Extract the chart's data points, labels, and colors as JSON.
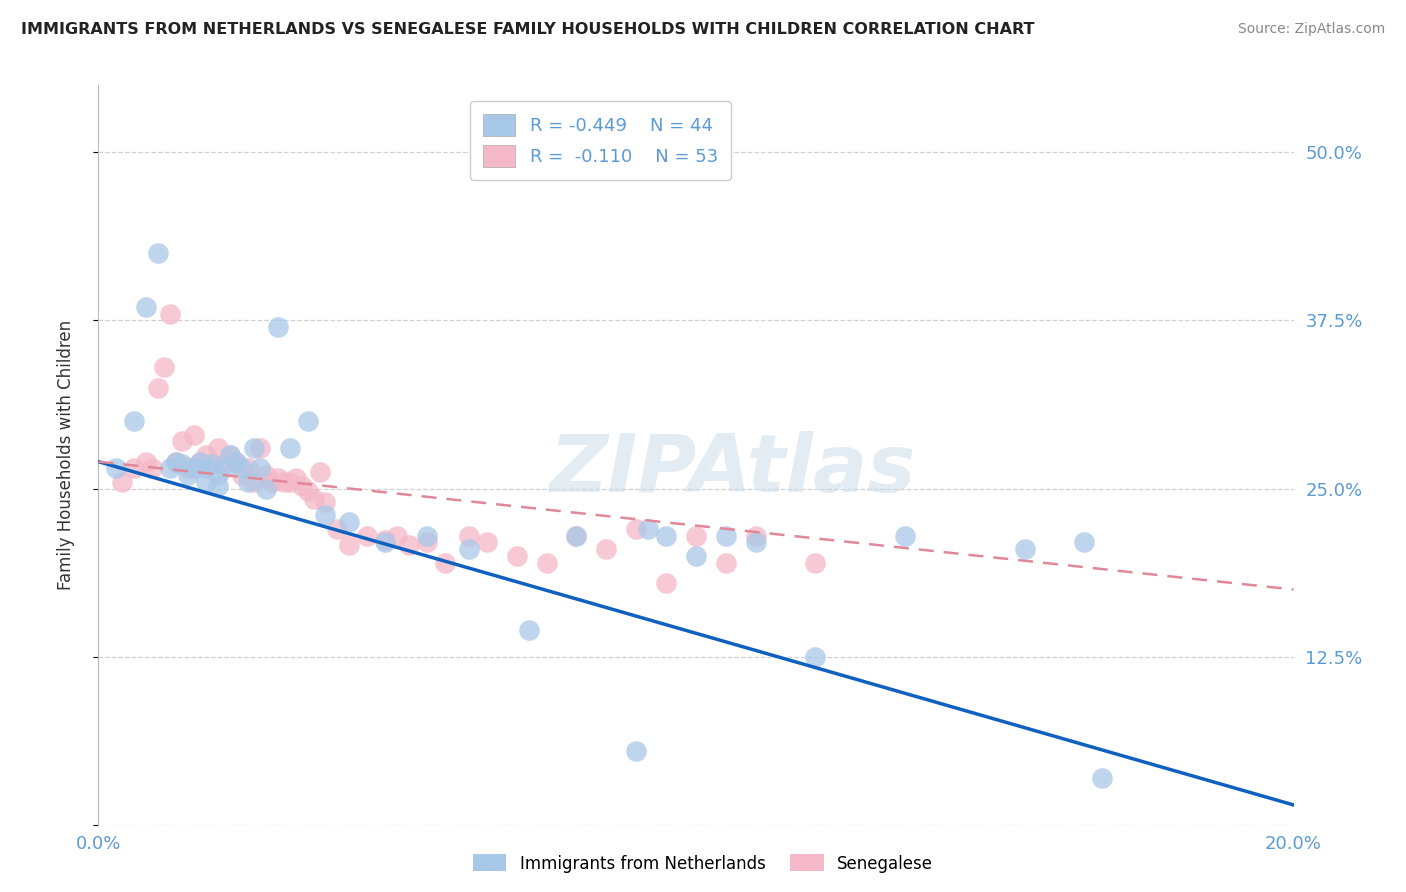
{
  "title": "IMMIGRANTS FROM NETHERLANDS VS SENEGALESE FAMILY HOUSEHOLDS WITH CHILDREN CORRELATION CHART",
  "source": "Source: ZipAtlas.com",
  "ylabel": "Family Households with Children",
  "xlim": [
    0.0,
    0.2
  ],
  "ylim": [
    0.0,
    0.55
  ],
  "yticks": [
    0.0,
    0.125,
    0.25,
    0.375,
    0.5
  ],
  "ytick_labels": [
    "",
    "12.5%",
    "25.0%",
    "37.5%",
    "50.0%"
  ],
  "xticks": [
    0.0,
    0.05,
    0.1,
    0.15,
    0.2
  ],
  "xtick_labels": [
    "0.0%",
    "",
    "",
    "",
    "20.0%"
  ],
  "legend_R1": "R = -0.449",
  "legend_N1": "N = 44",
  "legend_R2": "R = -0.110",
  "legend_N2": "N = 53",
  "watermark": "ZIPAtlas",
  "blue_color": "#A8C8E8",
  "pink_color": "#F4B8C8",
  "line_blue": "#1060C0",
  "line_pink": "#E08898",
  "axis_color": "#5B9BD5",
  "grid_color": "#CCCCCC",
  "blue_line_x0": 0.0,
  "blue_line_y0": 0.27,
  "blue_line_x1": 0.2,
  "blue_line_y1": 0.015,
  "pink_line_x0": 0.0,
  "pink_line_y0": 0.27,
  "pink_line_x1": 0.2,
  "pink_line_y1": 0.175,
  "blue_scatter_x": [
    0.003,
    0.006,
    0.008,
    0.01,
    0.012,
    0.013,
    0.014,
    0.015,
    0.016,
    0.017,
    0.018,
    0.018,
    0.019,
    0.02,
    0.02,
    0.021,
    0.022,
    0.023,
    0.024,
    0.025,
    0.026,
    0.027,
    0.028,
    0.03,
    0.032,
    0.035,
    0.038,
    0.042,
    0.048,
    0.055,
    0.062,
    0.072,
    0.08,
    0.092,
    0.095,
    0.1,
    0.105,
    0.11,
    0.12,
    0.135,
    0.168,
    0.09,
    0.155,
    0.165
  ],
  "blue_scatter_y": [
    0.265,
    0.3,
    0.385,
    0.425,
    0.265,
    0.27,
    0.268,
    0.26,
    0.265,
    0.27,
    0.265,
    0.255,
    0.268,
    0.26,
    0.252,
    0.265,
    0.275,
    0.27,
    0.265,
    0.255,
    0.28,
    0.265,
    0.25,
    0.37,
    0.28,
    0.3,
    0.23,
    0.225,
    0.21,
    0.215,
    0.205,
    0.145,
    0.215,
    0.22,
    0.215,
    0.2,
    0.215,
    0.21,
    0.125,
    0.215,
    0.035,
    0.055,
    0.205,
    0.21
  ],
  "pink_scatter_x": [
    0.004,
    0.006,
    0.008,
    0.009,
    0.01,
    0.011,
    0.012,
    0.013,
    0.014,
    0.015,
    0.016,
    0.017,
    0.018,
    0.019,
    0.02,
    0.021,
    0.022,
    0.023,
    0.024,
    0.025,
    0.026,
    0.027,
    0.028,
    0.029,
    0.03,
    0.031,
    0.032,
    0.033,
    0.034,
    0.035,
    0.036,
    0.037,
    0.038,
    0.04,
    0.042,
    0.045,
    0.048,
    0.05,
    0.052,
    0.055,
    0.058,
    0.062,
    0.065,
    0.07,
    0.075,
    0.08,
    0.085,
    0.09,
    0.095,
    0.1,
    0.105,
    0.11,
    0.12
  ],
  "pink_scatter_y": [
    0.255,
    0.265,
    0.27,
    0.265,
    0.325,
    0.34,
    0.38,
    0.27,
    0.285,
    0.265,
    0.29,
    0.27,
    0.275,
    0.268,
    0.28,
    0.268,
    0.275,
    0.27,
    0.26,
    0.265,
    0.255,
    0.28,
    0.26,
    0.255,
    0.258,
    0.255,
    0.255,
    0.258,
    0.252,
    0.248,
    0.242,
    0.262,
    0.24,
    0.22,
    0.208,
    0.215,
    0.212,
    0.215,
    0.208,
    0.21,
    0.195,
    0.215,
    0.21,
    0.2,
    0.195,
    0.215,
    0.205,
    0.22,
    0.18,
    0.215,
    0.195,
    0.215,
    0.195
  ]
}
